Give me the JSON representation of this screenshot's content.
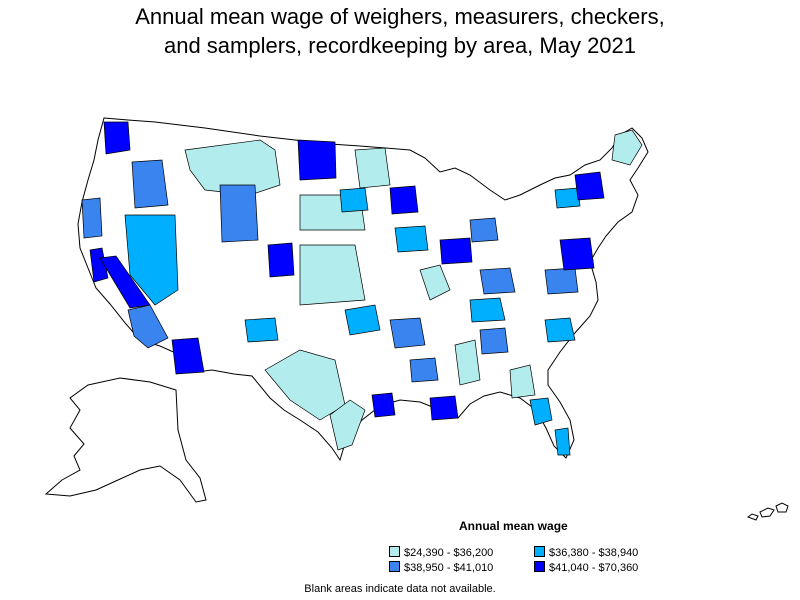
{
  "title": {
    "line1": "Annual mean wage of weighers, measurers, checkers,",
    "line2": "and samplers, recordkeeping by area, May 2021"
  },
  "legend": {
    "title": "Annual mean wage",
    "items": [
      {
        "label": "$24,390 - $36,200",
        "color": "#b3ecec"
      },
      {
        "label": "$36,380 - $38,940",
        "color": "#00b0ff"
      },
      {
        "label": "$38,950 - $41,010",
        "color": "#3a84f0"
      },
      {
        "label": "$41,040 - $70,360",
        "color": "#0000ff"
      }
    ]
  },
  "footnote": "Blank areas indicate data not available.",
  "colors": {
    "outline": "#000000",
    "no_data": "#ffffff"
  }
}
